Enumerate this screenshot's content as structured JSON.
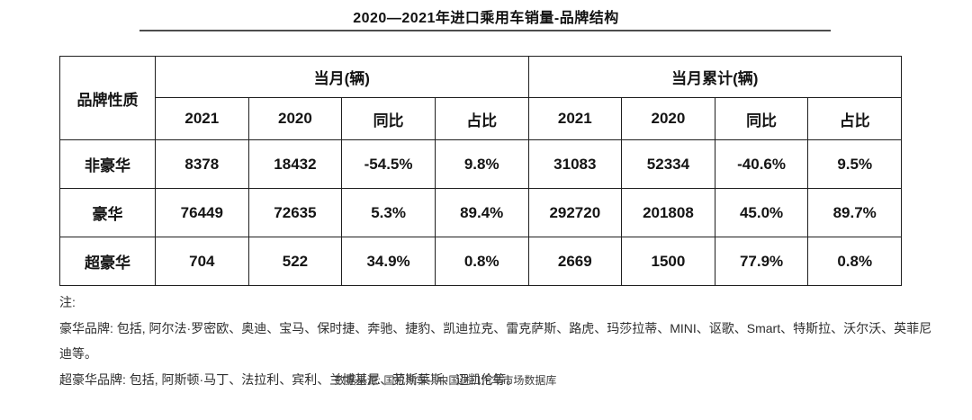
{
  "title": "2020—2021年进口乘用车销量-品牌结构",
  "table": {
    "corner_header": "品牌性质",
    "group_headers": [
      {
        "label": "当月(辆)"
      },
      {
        "label": "当月累计(辆)"
      }
    ],
    "sub_headers": [
      "2021",
      "2020",
      "同比",
      "占比",
      "2021",
      "2020",
      "同比",
      "占比"
    ],
    "rows": [
      {
        "label": "非豪华",
        "values": [
          "8378",
          "18432",
          "-54.5%",
          "9.8%",
          "31083",
          "52334",
          "-40.6%",
          "9.5%"
        ]
      },
      {
        "label": "豪华",
        "values": [
          "76449",
          "72635",
          "5.3%",
          "89.4%",
          "292720",
          "201808",
          "45.0%",
          "89.7%"
        ]
      },
      {
        "label": "超豪华",
        "values": [
          "704",
          "522",
          "34.9%",
          "0.8%",
          "2669",
          "1500",
          "77.9%",
          "0.8%"
        ]
      }
    ]
  },
  "notes": {
    "label": "注:",
    "luxury_note": "豪华品牌: 包括, 阿尔法·罗密欧、奥迪、宝马、保时捷、奔驰、捷豹、凯迪拉克、雷克萨斯、路虎、玛莎拉蒂、MINI、讴歌、Smart、特斯拉、沃尔沃、英菲尼迪等。",
    "super_luxury_note": "超豪华品牌: 包括, 阿斯顿·马丁、法拉利、宾利、兰博基尼、劳斯莱斯、迈凯伦等。"
  },
  "source": "数据来源: 国机汽车—中国进口汽车市场数据库",
  "colors": {
    "text": "#141414",
    "border": "#1f1f1f",
    "title_rule": "#4d4d4d",
    "note_text": "#2e2e2e",
    "source_text": "#3f3f3f",
    "background": "#ffffff"
  },
  "chart_data": {
    "type": "table",
    "title": "2020—2021年进口乘用车销量-品牌结构",
    "column_groups": [
      "当月(辆)",
      "当月累计(辆)"
    ],
    "columns": [
      "品牌性质",
      "当月(辆)-2021",
      "当月(辆)-2020",
      "当月(辆)-同比",
      "当月(辆)-占比",
      "当月累计(辆)-2021",
      "当月累计(辆)-2020",
      "当月累计(辆)-同比",
      "当月累计(辆)-占比"
    ],
    "rows": [
      [
        "非豪华",
        8378,
        18432,
        "-54.5%",
        "9.8%",
        31083,
        52334,
        "-40.6%",
        "9.5%"
      ],
      [
        "豪华",
        76449,
        72635,
        "5.3%",
        "89.4%",
        292720,
        201808,
        "45.0%",
        "89.7%"
      ],
      [
        "超豪华",
        704,
        522,
        "34.9%",
        "0.8%",
        2669,
        1500,
        "77.9%",
        "0.8%"
      ]
    ],
    "source": "数据来源: 国机汽车—中国进口汽车市场数据库"
  }
}
